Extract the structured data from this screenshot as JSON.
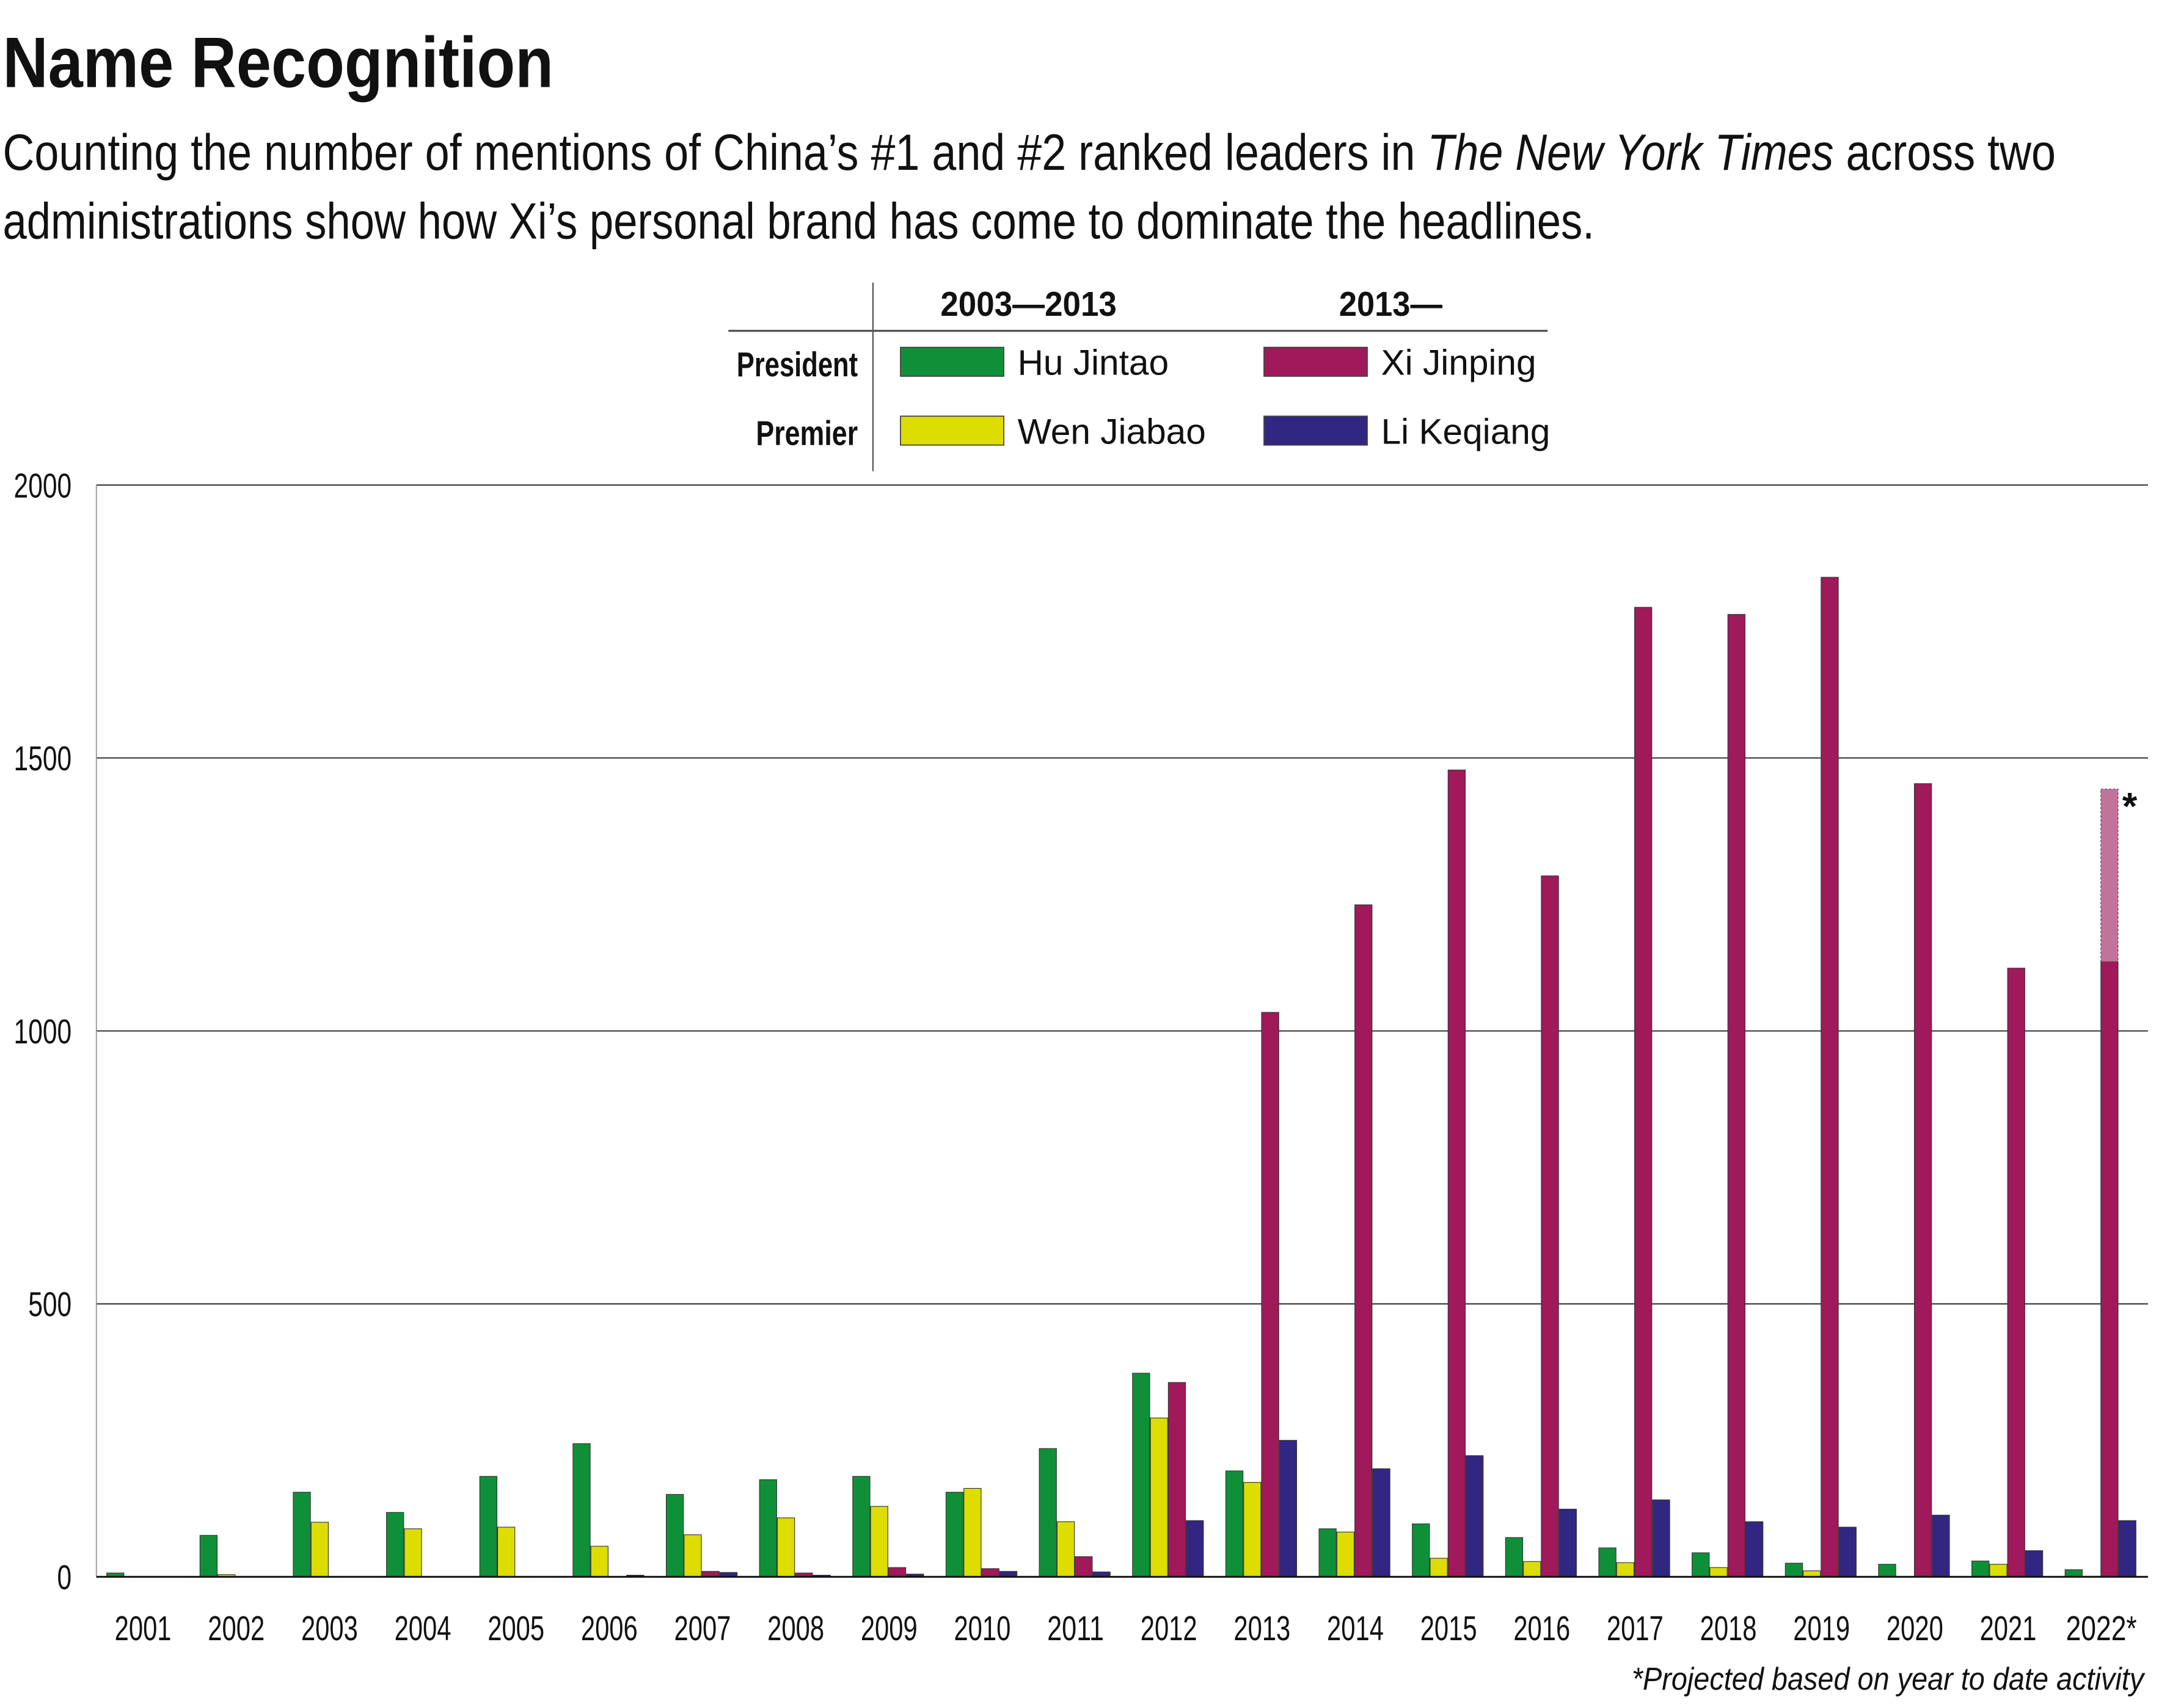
{
  "title": "Name Recognition",
  "subtitle": {
    "line1_pre": "Counting the number of mentions of China’s #1 and #2 ranked leaders in ",
    "line1_italic": "The New York Times",
    "line1_post": " across two",
    "line2": "administrations show how Xi’s personal brand has come to dominate the headlines."
  },
  "legend": {
    "col_headers": [
      "2003—2013",
      "2013—"
    ],
    "row_headers": [
      "President",
      "Premier"
    ]
  },
  "footnote": "*Projected based on year to date activity",
  "projection_marker": "*",
  "colors": {
    "Hu Jintao": "#0f9038",
    "Wen Jiabao": "#dddd00",
    "Xi Jinping": "#a0195a",
    "Li Keqiang": "#312681",
    "projected": "#c3739a"
  },
  "chart_data": {
    "type": "bar",
    "title": "Name Recognition",
    "xlabel": "",
    "ylabel": "",
    "ylim": [
      0,
      2000
    ],
    "yticks": [
      "0",
      "500",
      "1000",
      "1500",
      "2000"
    ],
    "grid": true,
    "legend_placement": "top-center",
    "categories": [
      "2001",
      "2002",
      "2003",
      "2004",
      "2005",
      "2006",
      "2007",
      "2008",
      "2009",
      "2010",
      "2011",
      "2012",
      "2013",
      "2014",
      "2015",
      "2016",
      "2017",
      "2018",
      "2019",
      "2020",
      "2021",
      "2022*"
    ],
    "series": [
      {
        "name": "Hu Jintao",
        "values": [
          7,
          76,
          155,
          118,
          184,
          244,
          151,
          178,
          184,
          155,
          235,
          373,
          194,
          88,
          97,
          72,
          53,
          44,
          25,
          23,
          29,
          13
        ]
      },
      {
        "name": "Wen Jiabao",
        "values": [
          0,
          4,
          100,
          88,
          91,
          56,
          77,
          108,
          129,
          162,
          101,
          291,
          173,
          82,
          34,
          28,
          26,
          17,
          11,
          0,
          23,
          1
        ]
      },
      {
        "name": "Xi Jinping",
        "values": [
          0,
          0,
          0,
          0,
          0,
          0,
          10,
          7,
          17,
          15,
          37,
          356,
          1034,
          1231,
          1478,
          1284,
          1776,
          1763,
          1831,
          1453,
          1115,
          1127
        ]
      },
      {
        "name": "Li Keqiang",
        "values": [
          0,
          0,
          0,
          0,
          0,
          3,
          8,
          3,
          5,
          10,
          9,
          103,
          250,
          198,
          222,
          124,
          141,
          101,
          91,
          113,
          48,
          103
        ]
      }
    ],
    "projected": {
      "series": "Xi Jinping",
      "category": "2022*",
      "value": 1443
    }
  }
}
